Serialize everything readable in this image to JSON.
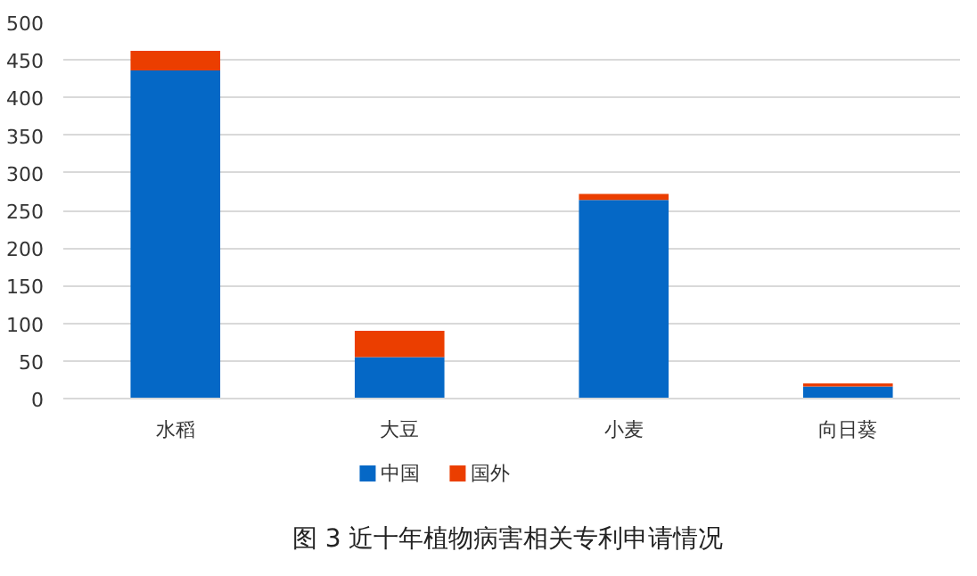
{
  "chart_data": {
    "type": "bar",
    "title": "图 3  近十年植物病害相关专利申请情况",
    "categories": [
      "水稻",
      "大豆",
      "小麦",
      "向日葵"
    ],
    "stacked": true,
    "series": [
      {
        "name": "中国",
        "color": "#0568c6",
        "values": [
          436,
          55,
          264,
          16
        ]
      },
      {
        "name": "国外",
        "color": "#eb3e00",
        "values": [
          26,
          35,
          8,
          4
        ]
      }
    ],
    "ylim": [
      0,
      500
    ],
    "yticks": [
      0,
      50,
      100,
      150,
      200,
      250,
      300,
      350,
      400,
      450,
      500
    ],
    "grid": "y",
    "legend": "bottom"
  }
}
